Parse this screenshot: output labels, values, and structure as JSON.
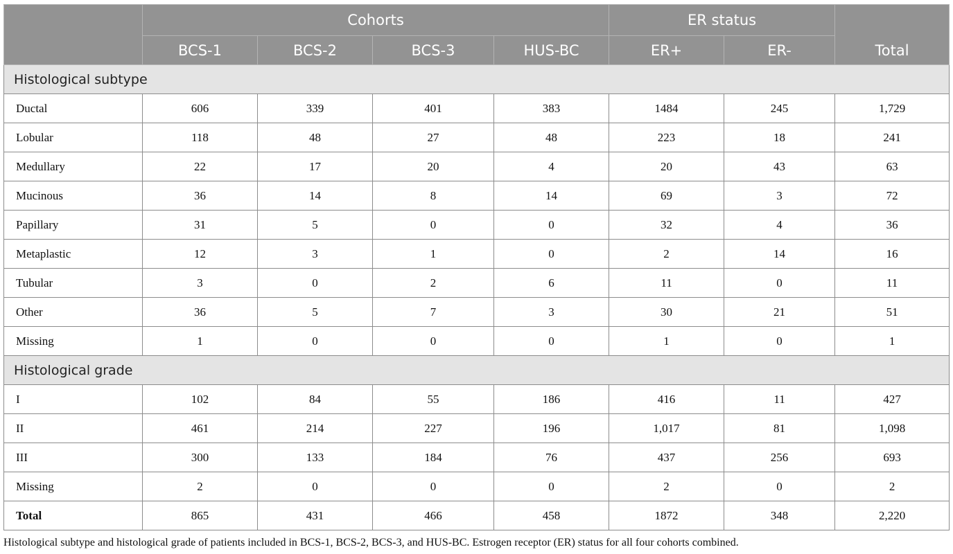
{
  "header": {
    "group_cohorts": "Cohorts",
    "group_er": "ER status",
    "total": "Total",
    "columns": [
      "BCS-1",
      "BCS-2",
      "BCS-3",
      "HUS-BC",
      "ER+",
      "ER-"
    ]
  },
  "sections": [
    {
      "title": "Histological subtype",
      "rows": [
        {
          "label": "Ductal",
          "values": [
            "606",
            "339",
            "401",
            "383",
            "1484",
            "245",
            "1,729"
          ]
        },
        {
          "label": "Lobular",
          "values": [
            "118",
            "48",
            "27",
            "48",
            "223",
            "18",
            "241"
          ]
        },
        {
          "label": "Medullary",
          "values": [
            "22",
            "17",
            "20",
            "4",
            "20",
            "43",
            "63"
          ]
        },
        {
          "label": "Mucinous",
          "values": [
            "36",
            "14",
            "8",
            "14",
            "69",
            "3",
            "72"
          ]
        },
        {
          "label": "Papillary",
          "values": [
            "31",
            "5",
            "0",
            "0",
            "32",
            "4",
            "36"
          ]
        },
        {
          "label": "Metaplastic",
          "values": [
            "12",
            "3",
            "1",
            "0",
            "2",
            "14",
            "16"
          ]
        },
        {
          "label": "Tubular",
          "values": [
            "3",
            "0",
            "2",
            "6",
            "11",
            "0",
            "11"
          ]
        },
        {
          "label": "Other",
          "values": [
            "36",
            "5",
            "7",
            "3",
            "30",
            "21",
            "51"
          ]
        },
        {
          "label": "Missing",
          "values": [
            "1",
            "0",
            "0",
            "0",
            "1",
            "0",
            "1"
          ]
        }
      ]
    },
    {
      "title": "Histological grade",
      "rows": [
        {
          "label": "I",
          "values": [
            "102",
            "84",
            "55",
            "186",
            "416",
            "11",
            "427"
          ]
        },
        {
          "label": "II",
          "values": [
            "461",
            "214",
            "227",
            "196",
            "1,017",
            "81",
            "1,098"
          ]
        },
        {
          "label": "III",
          "values": [
            "300",
            "133",
            "184",
            "76",
            "437",
            "256",
            "693"
          ]
        },
        {
          "label": "Missing",
          "values": [
            "2",
            "0",
            "0",
            "0",
            "2",
            "0",
            "2"
          ]
        }
      ]
    }
  ],
  "total_row": {
    "label": "Total",
    "values": [
      "865",
      "431",
      "466",
      "458",
      "1872",
      "348",
      "2,220"
    ]
  },
  "caption": "Histological subtype and histological grade of patients included in BCS-1, BCS-2, BCS-3, and HUS-BC. Estrogen receptor (ER) status for all four cohorts combined."
}
